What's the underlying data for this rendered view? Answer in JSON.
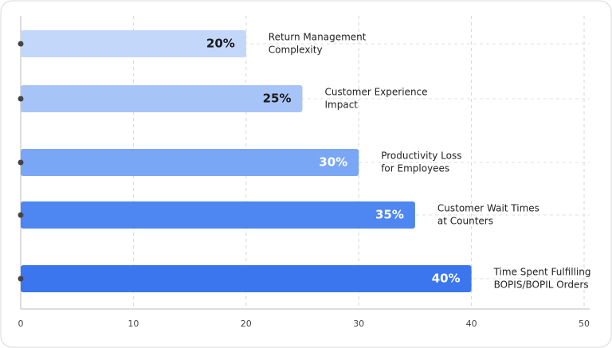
{
  "chart_data": {
    "type": "bar",
    "orientation": "horizontal",
    "categories": [
      [
        "Return Management",
        "Complexity"
      ],
      [
        "Customer Experience",
        "Impact"
      ],
      [
        "Productivity Loss",
        "for Employees"
      ],
      [
        "Customer Wait Times",
        "at Counters"
      ],
      [
        "Time Spent Fulfilling",
        "BOPIS/BOPIL Orders"
      ]
    ],
    "values": [
      20,
      25,
      30,
      35,
      40
    ],
    "value_labels": [
      "20%",
      "25%",
      "30%",
      "35%",
      "40%"
    ],
    "colors": [
      "#c3d7fb",
      "#a7c4f8",
      "#79a6f5",
      "#4e86f2",
      "#3b76ef"
    ],
    "label_colors": [
      "#1a1a1a",
      "#1a1a1a",
      "#ffffff",
      "#ffffff",
      "#ffffff"
    ],
    "xlim": [
      0,
      50
    ],
    "xticks": [
      0,
      10,
      20,
      30,
      40,
      50
    ],
    "grid": true
  }
}
